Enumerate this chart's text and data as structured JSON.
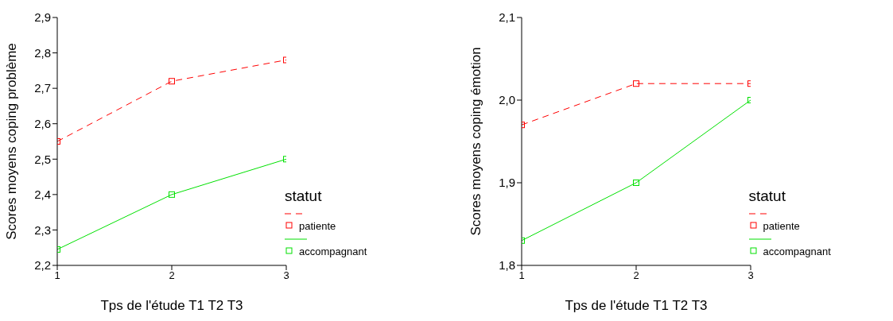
{
  "chart_data": [
    {
      "type": "line",
      "xlabel": "Tps de l'étude T1 T2 T3",
      "ylabel": "Scores moyens coping problème",
      "legend_title": "statut",
      "legend": "right",
      "marker": "square",
      "grid": false,
      "x": [
        1,
        2,
        3
      ],
      "xlim": [
        1,
        3
      ],
      "xticks": [
        1,
        2,
        3
      ],
      "ylim": [
        2.2,
        2.9
      ],
      "yticks": [
        {
          "value": 2.2,
          "label": "2,2"
        },
        {
          "value": 2.3,
          "label": "2,3"
        },
        {
          "value": 2.4,
          "label": "2,4"
        },
        {
          "value": 2.5,
          "label": "2,5"
        },
        {
          "value": 2.6,
          "label": "2,6"
        },
        {
          "value": 2.7,
          "label": "2,7"
        },
        {
          "value": 2.8,
          "label": "2,8"
        },
        {
          "value": 2.9,
          "label": "2,9"
        }
      ],
      "series": [
        {
          "name": "patiente",
          "color": "#ff0000",
          "line_style": "dashed",
          "values": [
            2.55,
            2.72,
            2.78
          ]
        },
        {
          "name": "accompagnant",
          "color": "#00e000",
          "line_style": "solid",
          "values": [
            2.245,
            2.4,
            2.5
          ]
        }
      ]
    },
    {
      "type": "line",
      "xlabel": "Tps de l'étude T1 T2 T3",
      "ylabel": "Scores moyens coping émotion",
      "legend_title": "statut",
      "legend": "right",
      "marker": "square",
      "grid": false,
      "x": [
        1,
        2,
        3
      ],
      "xlim": [
        1,
        3
      ],
      "xticks": [
        1,
        2,
        3
      ],
      "ylim": [
        1.8,
        2.1
      ],
      "yticks": [
        {
          "value": 1.8,
          "label": "1,8"
        },
        {
          "value": 1.9,
          "label": "1,9"
        },
        {
          "value": 2.0,
          "label": "2,0"
        },
        {
          "value": 2.1,
          "label": "2,1"
        }
      ],
      "series": [
        {
          "name": "patiente",
          "color": "#ff0000",
          "line_style": "dashed",
          "values": [
            1.97,
            2.02,
            2.02
          ]
        },
        {
          "name": "accompagnant",
          "color": "#00e000",
          "line_style": "solid",
          "values": [
            1.83,
            1.9,
            2.0
          ]
        }
      ]
    }
  ]
}
